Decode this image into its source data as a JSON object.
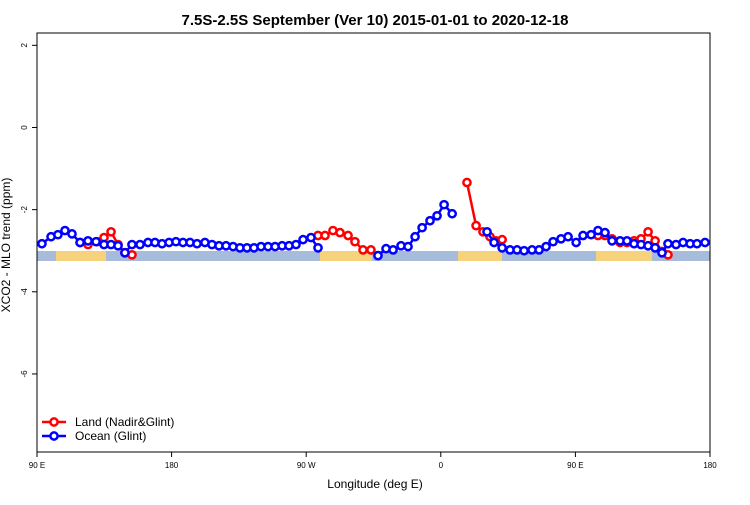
{
  "chart_data": {
    "type": "line",
    "title": "7.5S-2.5S September (Ver 10)   2015-01-01 to 2020-12-18",
    "x_label": "Longitude (deg E)",
    "y_label": "XCO2 - MLO trend (ppm)",
    "xlim": [
      90,
      540
    ],
    "ylim": [
      -7.9,
      2.3
    ],
    "xticks": [
      {
        "value": 90,
        "label": "90 E"
      },
      180,
      {
        "value": 270,
        "label": "90 W"
      },
      {
        "value": 360,
        "label": "0"
      },
      {
        "value": 450,
        "label": "90 E"
      },
      {
        "value": 540,
        "label": "180"
      }
    ],
    "yticks": [
      -6,
      -4,
      -2,
      0,
      2
    ],
    "legend": "bottom-left",
    "series": [
      {
        "name": "Land (Nadir&Glint)",
        "color": "#ff0000",
        "x": [
          118.8,
          124.1,
          130.1,
          134.8,
          139.5,
          144.2,
          148.8,
          153.5,
          null,
          277.9,
          282.6,
          287.9,
          292.6,
          298.0,
          302.6,
          308.0,
          313.3,
          null,
          377.5,
          383.6,
          388.2,
          392.9,
          396.9,
          401.0,
          null,
          465.1,
          469.8,
          474.5,
          479.9,
          484.5,
          489.2,
          493.9,
          498.6,
          503.3,
          507.9,
          511.9
        ],
        "values": [
          -2.8,
          -2.85,
          -2.78,
          -2.68,
          -2.54,
          -2.85,
          -3.05,
          -3.1,
          null,
          -2.63,
          -2.63,
          -2.51,
          -2.56,
          -2.63,
          -2.78,
          -2.98,
          -2.98,
          null,
          -1.34,
          -2.39,
          -2.54,
          -2.66,
          -2.76,
          -2.73,
          null,
          -2.63,
          -2.63,
          -2.71,
          -2.8,
          -2.8,
          -2.76,
          -2.71,
          -2.54,
          -2.76,
          -3.02,
          -3.1
        ]
      },
      {
        "name": "Ocean (Glint)",
        "color": "#0000ff",
        "x": [
          93.3,
          99.4,
          104.0,
          108.7,
          113.4,
          118.8,
          124.1,
          129.5,
          134.8,
          139.5,
          144.2,
          148.8,
          153.5,
          158.9,
          164.2,
          168.9,
          173.6,
          178.3,
          182.9,
          187.6,
          192.3,
          197.0,
          202.3,
          207.0,
          211.7,
          216.4,
          221.1,
          225.7,
          230.4,
          235.1,
          239.8,
          244.5,
          249.2,
          253.9,
          258.5,
          263.2,
          267.9,
          273.2,
          277.9,
          null,
          318.0,
          323.4,
          328.1,
          333.4,
          338.1,
          342.8,
          347.5,
          352.8,
          357.5,
          362.2,
          367.6,
          null,
          390.9,
          395.6,
          401.0,
          406.3,
          411.0,
          415.7,
          421.0,
          425.7,
          430.4,
          435.1,
          440.4,
          445.1,
          450.5,
          455.1,
          460.5,
          465.1,
          469.8,
          474.5,
          479.9,
          484.5,
          489.2,
          493.9,
          498.6,
          503.3,
          507.9,
          511.9,
          517.3,
          522.0,
          526.7,
          531.3,
          536.7
        ],
        "values": [
          -2.83,
          -2.66,
          -2.61,
          -2.51,
          -2.59,
          -2.8,
          -2.76,
          -2.78,
          -2.85,
          -2.85,
          -2.88,
          -3.05,
          -2.85,
          -2.85,
          -2.8,
          -2.8,
          -2.83,
          -2.8,
          -2.78,
          -2.8,
          -2.8,
          -2.83,
          -2.8,
          -2.85,
          -2.88,
          -2.88,
          -2.9,
          -2.93,
          -2.93,
          -2.93,
          -2.9,
          -2.9,
          -2.9,
          -2.88,
          -2.88,
          -2.85,
          -2.73,
          -2.68,
          -2.93,
          null,
          -3.12,
          -2.95,
          -2.98,
          -2.88,
          -2.9,
          -2.66,
          -2.44,
          -2.27,
          -2.15,
          -1.88,
          -2.1,
          null,
          -2.54,
          -2.8,
          -2.93,
          -2.98,
          -2.98,
          -3.0,
          -2.98,
          -2.98,
          -2.9,
          -2.78,
          -2.71,
          -2.66,
          -2.8,
          -2.63,
          -2.61,
          -2.51,
          -2.56,
          -2.76,
          -2.76,
          -2.76,
          -2.83,
          -2.85,
          -2.88,
          -2.93,
          -3.05,
          -2.83,
          -2.85,
          -2.8,
          -2.83,
          -2.83,
          -2.8
        ]
      }
    ]
  }
}
